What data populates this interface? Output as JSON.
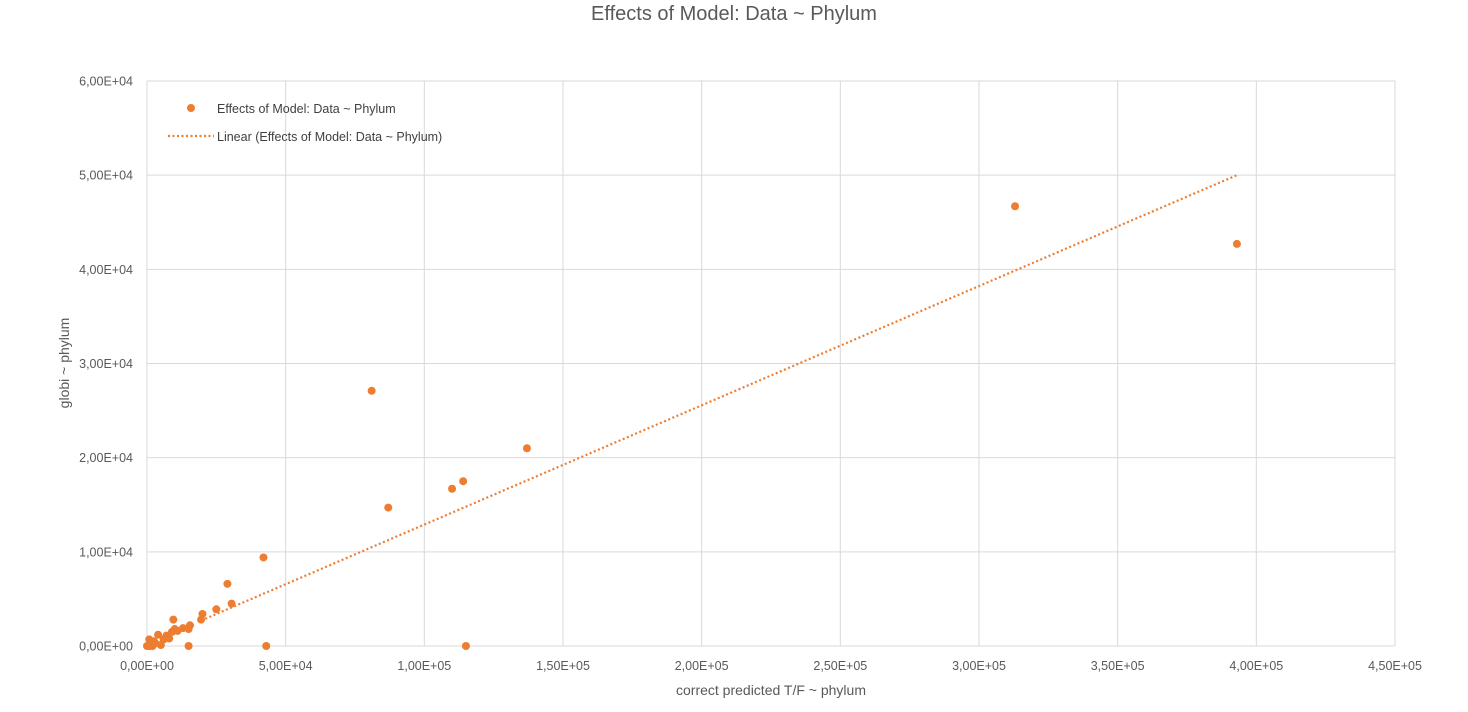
{
  "chart_data": {
    "type": "scatter",
    "title": "Effects of Model: Data ~ Phylum",
    "xlabel": "correct predicted T/F ~ phylum",
    "ylabel": "globi ~ phylum",
    "xlim": [
      0,
      450000
    ],
    "ylim": [
      0,
      60000
    ],
    "x_ticks": [
      0,
      50000,
      100000,
      150000,
      200000,
      250000,
      300000,
      350000,
      400000,
      450000
    ],
    "x_tick_labels": [
      "0,00E+00",
      "5,00E+04",
      "1,00E+05",
      "1,50E+05",
      "2,00E+05",
      "2,50E+05",
      "3,00E+05",
      "3,50E+05",
      "4,00E+05",
      "4,50E+05"
    ],
    "y_ticks": [
      0,
      10000,
      20000,
      30000,
      40000,
      50000,
      60000
    ],
    "y_tick_labels": [
      "0,00E+00",
      "1,00E+04",
      "2,00E+04",
      "3,00E+04",
      "4,00E+04",
      "5,00E+04",
      "6,00E+04"
    ],
    "grid": true,
    "legend_position": "top-left",
    "series": [
      {
        "name": "Effects of Model: Data ~ Phylum",
        "color": "#ED7D31",
        "marker": "circle",
        "points": [
          [
            0,
            0
          ],
          [
            500,
            0
          ],
          [
            1000,
            0
          ],
          [
            1500,
            200
          ],
          [
            2000,
            0
          ],
          [
            800,
            700
          ],
          [
            2500,
            500
          ],
          [
            3000,
            300
          ],
          [
            4000,
            1200
          ],
          [
            5000,
            100
          ],
          [
            6000,
            700
          ],
          [
            7000,
            1100
          ],
          [
            8000,
            800
          ],
          [
            9000,
            1500
          ],
          [
            10000,
            1800
          ],
          [
            9500,
            2800
          ],
          [
            11000,
            1600
          ],
          [
            13000,
            1900
          ],
          [
            15000,
            1800
          ],
          [
            15500,
            2200
          ],
          [
            15000,
            0
          ],
          [
            19500,
            2800
          ],
          [
            20000,
            3400
          ],
          [
            25000,
            3900
          ],
          [
            29000,
            6600
          ],
          [
            30500,
            4500
          ],
          [
            42000,
            9400
          ],
          [
            43000,
            0
          ],
          [
            81000,
            27100
          ],
          [
            87000,
            14700
          ],
          [
            110000,
            16700
          ],
          [
            114000,
            17500
          ],
          [
            115000,
            0
          ],
          [
            137000,
            21000
          ],
          [
            313000,
            46700
          ],
          [
            393000,
            42700
          ]
        ]
      },
      {
        "name": "Linear (Effects of Model: Data ~ Phylum)",
        "type": "trendline",
        "color": "#ED7D31",
        "style": "dotted",
        "line": {
          "x": [
            19500,
            393000
          ],
          "y": [
            2700,
            50000
          ]
        }
      }
    ]
  }
}
